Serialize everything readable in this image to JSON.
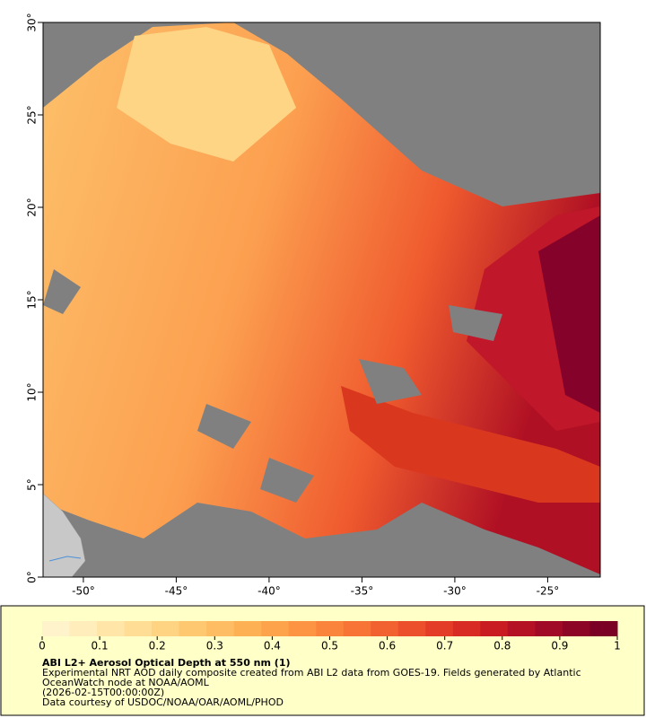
{
  "map": {
    "xlim": [
      -52.17,
      -22.17
    ],
    "ylim": [
      0,
      30
    ],
    "xticks": [
      {
        "value": -50,
        "label": "-50°"
      },
      {
        "value": -45,
        "label": "-45°"
      },
      {
        "value": -40,
        "label": "-40°"
      },
      {
        "value": -35,
        "label": "-35°"
      },
      {
        "value": -30,
        "label": "-30°"
      },
      {
        "value": -25,
        "label": "-25°"
      }
    ],
    "yticks": [
      {
        "value": 0,
        "label": "0°"
      },
      {
        "value": 5,
        "label": "5°"
      },
      {
        "value": 10,
        "label": "10°"
      },
      {
        "value": 15,
        "label": "15°"
      },
      {
        "value": 20,
        "label": "20°"
      },
      {
        "value": 25,
        "label": "25°"
      },
      {
        "value": 30,
        "label": "30°"
      }
    ]
  },
  "colorbar": {
    "title": "ABI L2+ Aerosol Optical Depth at 550 nm (1)",
    "lim": [
      0,
      1
    ],
    "ticks": [
      0,
      0.1,
      0.2,
      0.3,
      0.4,
      0.5,
      0.6,
      0.7,
      0.8,
      0.9,
      1
    ],
    "colors": [
      "#fff3cc",
      "#ffeebb",
      "#ffe6a8",
      "#ffdd95",
      "#fed382",
      "#fec870",
      "#febd62",
      "#feb055",
      "#fda34b",
      "#fc9443",
      "#fb843c",
      "#f77336",
      "#f26130",
      "#ec4f2b",
      "#e33d27",
      "#d72b23",
      "#c81b22",
      "#b51124",
      "#a10a26",
      "#8c0527",
      "#7a0026"
    ]
  },
  "caption": [
    "Experimental NRT AOD daily composite created from ABI L2 data from GOES-19. Fields generated by Atlantic",
    "OceanWatch node at NOAA/AOML",
    "(2026-02-15T00:00:00Z)",
    "Data courtesy of USDOC/NOAA/OAR/AOML/PHOD"
  ]
}
